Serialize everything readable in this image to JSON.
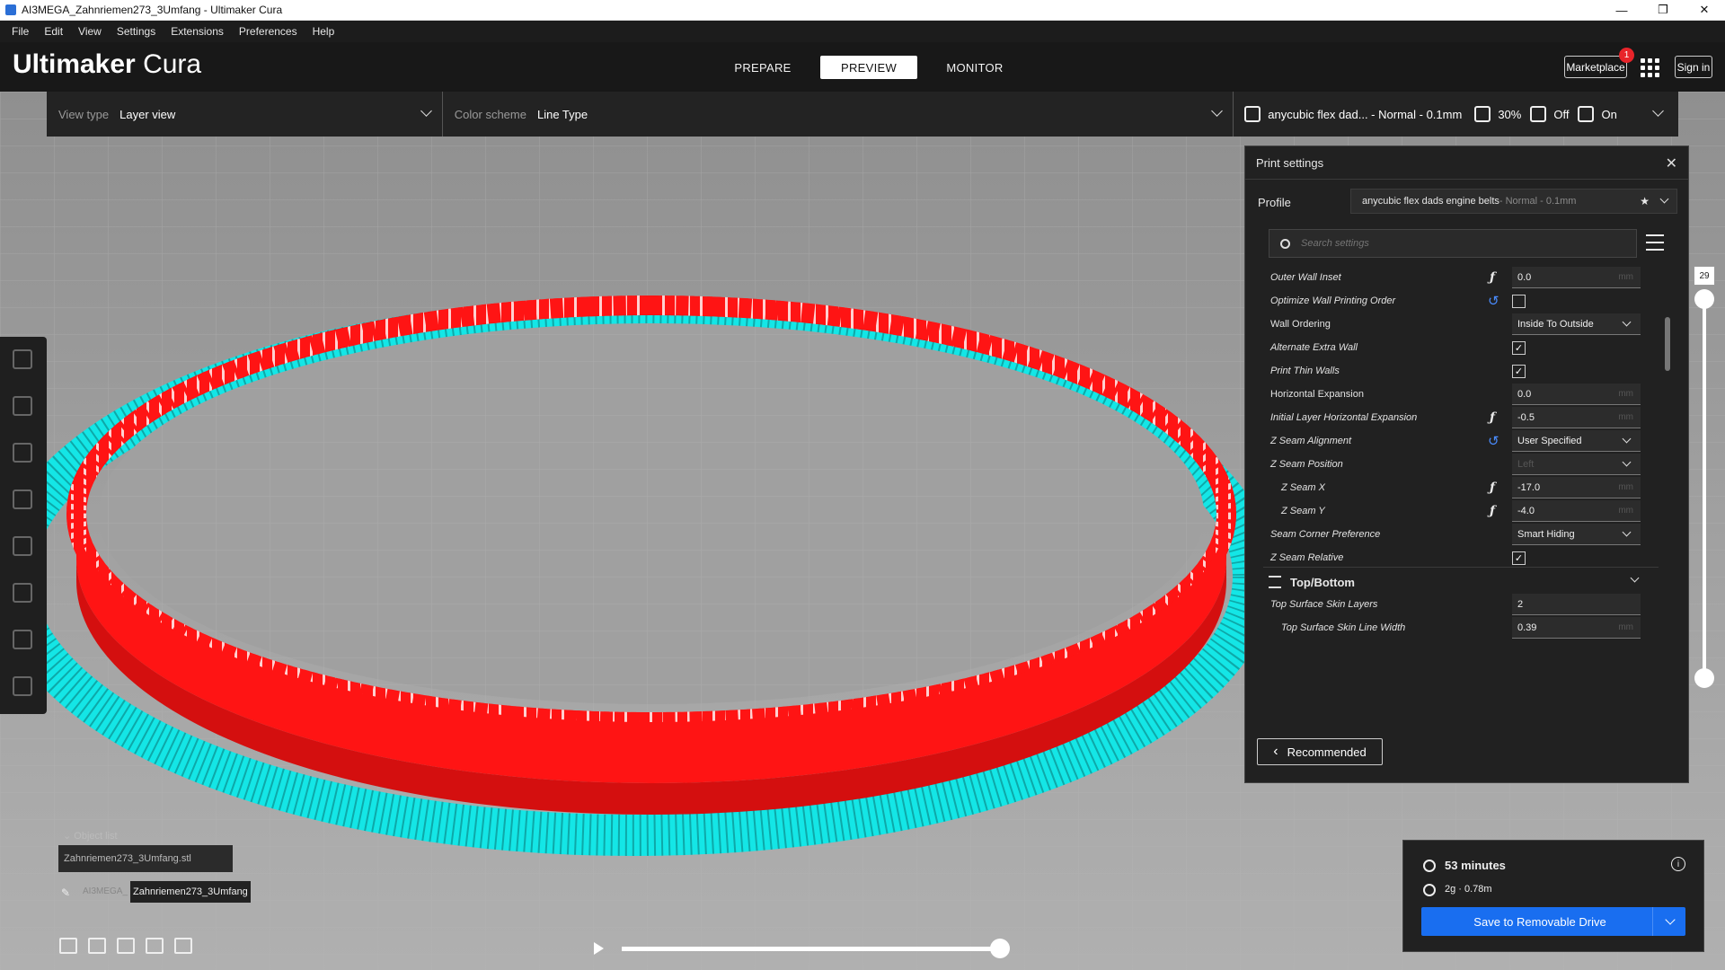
{
  "window": {
    "title": "AI3MEGA_Zahnriemen273_3Umfang - Ultimaker Cura",
    "controls": [
      "—",
      "❐",
      "✕"
    ]
  },
  "menu": [
    "File",
    "Edit",
    "View",
    "Settings",
    "Extensions",
    "Preferences",
    "Help"
  ],
  "header": {
    "brand_bold": "Ultimaker",
    "brand_light": " Cura",
    "stages": [
      "PREPARE",
      "PREVIEW",
      "MONITOR"
    ],
    "active_stage": "PREVIEW",
    "marketplace": "Marketplace",
    "marketplace_badge": "1",
    "signin": "Sign in"
  },
  "toolbar": {
    "view_type_label": "View type",
    "view_type_value": "Layer view",
    "color_scheme_label": "Color scheme",
    "color_scheme_value": "Line Type",
    "profile_summary": "anycubic flex dad... - Normal - 0.1mm",
    "infill": "30%",
    "support": "Off",
    "adhesion": "On"
  },
  "print_settings": {
    "title": "Print settings",
    "profile_label": "Profile",
    "profile_name": "anycubic flex dads engine belts",
    "profile_suffix": " - Normal - 0.1mm",
    "search_placeholder": "Search settings",
    "settings": [
      {
        "name": "Outer Wall Inset",
        "control": "text",
        "value": "0.0",
        "unit": "mm",
        "fx": true
      },
      {
        "name": "Optimize Wall Printing Order",
        "control": "check",
        "value": "",
        "reset": true
      },
      {
        "name": "Wall Ordering",
        "control": "select",
        "value": "Inside To Outside"
      },
      {
        "name": "Alternate Extra Wall",
        "control": "check",
        "value": "✓"
      },
      {
        "name": "Print Thin Walls",
        "control": "check",
        "value": "✓"
      },
      {
        "name": "Horizontal Expansion",
        "control": "text",
        "value": "0.0",
        "unit": "mm"
      },
      {
        "name": "Initial Layer Horizontal Expansion",
        "control": "text",
        "value": "-0.5",
        "unit": "mm",
        "fx": true
      },
      {
        "name": "Z Seam Alignment",
        "control": "select",
        "value": "User Specified",
        "reset": true
      },
      {
        "name": "Z Seam Position",
        "control": "select",
        "value": "Left",
        "disabled": true
      },
      {
        "name": "Z Seam X",
        "control": "text",
        "value": "-17.0",
        "unit": "mm",
        "fx": true,
        "indent": true
      },
      {
        "name": "Z Seam Y",
        "control": "text",
        "value": "-4.0",
        "unit": "mm",
        "fx": true,
        "indent": true
      },
      {
        "name": "Seam Corner Preference",
        "control": "select",
        "value": "Smart Hiding"
      },
      {
        "name": "Z Seam Relative",
        "control": "check",
        "value": "✓"
      }
    ],
    "category": "Top/Bottom",
    "after_category": [
      {
        "name": "Top Surface Skin Layers",
        "control": "text",
        "value": "2",
        "unit": ""
      },
      {
        "name": "Top Surface Skin Line Width",
        "control": "text",
        "value": "0.39",
        "unit": "mm",
        "indent": true
      }
    ],
    "recommended_button": "Recommended"
  },
  "layer_slider": {
    "current_layer": "29"
  },
  "object_list": {
    "header": "Object list",
    "item": "Zahnriemen273_3Umfang.stl",
    "job_prefix": "AI3MEGA_",
    "job_name": "Zahnriemen273_3Umfang"
  },
  "output": {
    "time": "53 minutes",
    "material": "2g · 0.78m",
    "save_button": "Save to Removable Drive"
  },
  "colors": {
    "accent": "#196ef0",
    "wall": "#ff1414",
    "skin": "#14e6e6",
    "bg_dark": "#212121"
  }
}
